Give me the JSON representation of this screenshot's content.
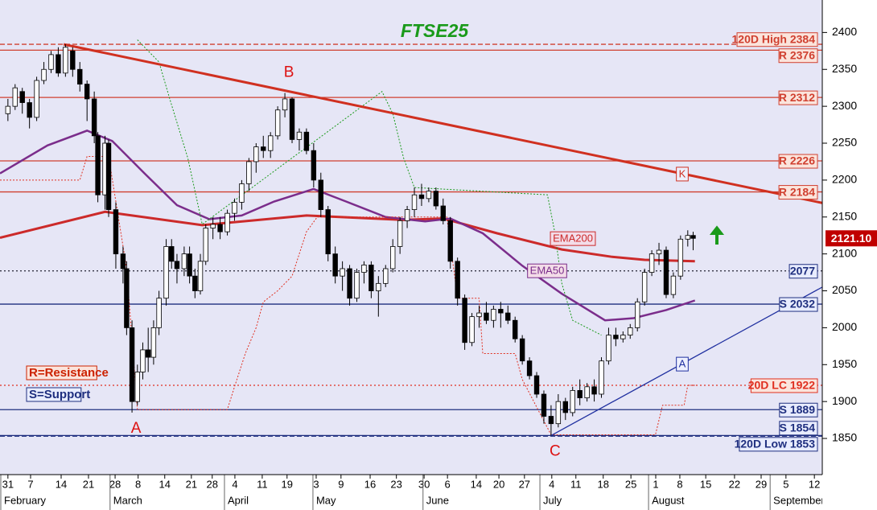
{
  "chart_data": {
    "type": "candlestick",
    "title": "FTSE25",
    "x": [
      0,
      2,
      4,
      6,
      8,
      10,
      12,
      14,
      16,
      18,
      20,
      22,
      24,
      25,
      27,
      28,
      30,
      32,
      33,
      34.5,
      36,
      37.5,
      39,
      40.5,
      42,
      44,
      45.5,
      47,
      49,
      50.5,
      52,
      53.5,
      55,
      57,
      59,
      61,
      63,
      65,
      67,
      69,
      71,
      73,
      75,
      77,
      79,
      81,
      83,
      85,
      87,
      89,
      91,
      93,
      95,
      97,
      99,
      101,
      103,
      105,
      107,
      109,
      111,
      113,
      115,
      117,
      119,
      121,
      123,
      125,
      127,
      129,
      131,
      133,
      135,
      137,
      139,
      141,
      143,
      145,
      147,
      149,
      151,
      153,
      155,
      157,
      159,
      161,
      163,
      165,
      167,
      169,
      171,
      173,
      175,
      177,
      179,
      181,
      183,
      185,
      187,
      189,
      190.5
    ],
    "open": [
      2290,
      2300,
      2320,
      2305,
      2285,
      2335,
      2350,
      2370,
      2345,
      2375,
      2350,
      2330,
      2310,
      2260,
      2180,
      2250,
      2160,
      2100,
      2080,
      2000,
      1900,
      1940,
      1970,
      1960,
      2000,
      2040,
      2110,
      2090,
      2080,
      2100,
      2070,
      2050,
      2090,
      2135,
      2140,
      2130,
      2155,
      2170,
      2195,
      2225,
      2245,
      2240,
      2260,
      2295,
      2310,
      2255,
      2265,
      2240,
      2200,
      2160,
      2100,
      2070,
      2080,
      2040,
      2075,
      2085,
      2050,
      2060,
      2080,
      2110,
      2145,
      2160,
      2180,
      2175,
      2185,
      2165,
      2145,
      2090,
      2040,
      1980,
      2015,
      2020,
      2010,
      2025,
      2020,
      2010,
      1985,
      1955,
      1935,
      1910,
      1880,
      1870,
      1900,
      1885,
      1915,
      1905,
      1920,
      1910,
      1955,
      1990,
      1985,
      1990,
      2000,
      2035,
      2075,
      2100,
      2105,
      2045,
      2070,
      2120,
      2125
    ],
    "high": [
      2310,
      2330,
      2325,
      2310,
      2340,
      2360,
      2375,
      2380,
      2384,
      2380,
      2360,
      2335,
      2320,
      2265,
      2260,
      2255,
      2170,
      2110,
      2090,
      2010,
      1950,
      1980,
      2000,
      2010,
      2050,
      2120,
      2120,
      2100,
      2110,
      2110,
      2080,
      2100,
      2140,
      2150,
      2150,
      2160,
      2175,
      2200,
      2230,
      2250,
      2260,
      2265,
      2300,
      2318,
      2312,
      2270,
      2270,
      2250,
      2210,
      2165,
      2110,
      2090,
      2085,
      2080,
      2090,
      2090,
      2070,
      2085,
      2120,
      2150,
      2165,
      2190,
      2195,
      2190,
      2190,
      2175,
      2150,
      2095,
      2045,
      2020,
      2030,
      2035,
      2030,
      2035,
      2030,
      2015,
      1990,
      1960,
      1940,
      1915,
      1895,
      1910,
      1905,
      1920,
      1930,
      1925,
      1930,
      1960,
      2000,
      2000,
      1995,
      2005,
      2040,
      2080,
      2105,
      2115,
      2110,
      2075,
      2125,
      2132,
      2130
    ],
    "low": [
      2280,
      2295,
      2290,
      2270,
      2280,
      2330,
      2345,
      2340,
      2340,
      2340,
      2320,
      2280,
      2250,
      2170,
      2160,
      2150,
      2080,
      2060,
      1990,
      1885,
      1895,
      1930,
      1940,
      1950,
      1990,
      2030,
      2080,
      2060,
      2070,
      2060,
      2040,
      2045,
      2085,
      2120,
      2120,
      2125,
      2145,
      2160,
      2185,
      2210,
      2230,
      2230,
      2255,
      2285,
      2250,
      2240,
      2235,
      2190,
      2150,
      2090,
      2060,
      2050,
      2030,
      2035,
      2060,
      2040,
      2015,
      2055,
      2075,
      2100,
      2135,
      2150,
      2165,
      2170,
      2160,
      2140,
      2080,
      2030,
      1970,
      1975,
      2000,
      2005,
      2000,
      2000,
      2005,
      1980,
      1950,
      1930,
      1905,
      1870,
      1854,
      1865,
      1875,
      1880,
      1895,
      1900,
      1900,
      1905,
      1950,
      1975,
      1980,
      1985,
      1995,
      2030,
      2070,
      2085,
      2040,
      2040,
      2065,
      2110,
      2105
    ],
    "close": [
      2300,
      2325,
      2305,
      2285,
      2335,
      2350,
      2370,
      2345,
      2380,
      2350,
      2330,
      2310,
      2260,
      2180,
      2250,
      2160,
      2100,
      2080,
      2000,
      1900,
      1940,
      1970,
      1960,
      2000,
      2040,
      2110,
      2090,
      2080,
      2100,
      2070,
      2050,
      2090,
      2135,
      2140,
      2130,
      2155,
      2170,
      2195,
      2225,
      2245,
      2240,
      2260,
      2295,
      2310,
      2255,
      2265,
      2240,
      2200,
      2160,
      2100,
      2070,
      2080,
      2040,
      2075,
      2085,
      2050,
      2060,
      2080,
      2110,
      2145,
      2160,
      2180,
      2175,
      2185,
      2165,
      2145,
      2090,
      2040,
      1980,
      2015,
      2020,
      2010,
      2025,
      2020,
      2010,
      1985,
      1955,
      1935,
      1910,
      1880,
      1870,
      1900,
      1885,
      1915,
      1905,
      1920,
      1910,
      1955,
      1990,
      1985,
      1990,
      2000,
      2035,
      2075,
      2100,
      2105,
      2045,
      2070,
      2120,
      2125,
      2121.1
    ],
    "up_color": "#ffffff",
    "down_color": "#000000",
    "xlim": [
      -2.2,
      226.4
    ],
    "ylim": [
      1801,
      2444
    ],
    "yticks": [
      1850,
      1900,
      1950,
      2000,
      2050,
      2100,
      2150,
      2200,
      2250,
      2300,
      2350,
      2400
    ],
    "xticks": [
      {
        "value": 0,
        "label": "31"
      },
      {
        "value": 6.3,
        "label": "7"
      },
      {
        "value": 14.8,
        "label": "14"
      },
      {
        "value": 22.4,
        "label": "21"
      },
      {
        "value": 29.8,
        "label": "28"
      },
      {
        "value": 36.2,
        "label": "8"
      },
      {
        "value": 43.6,
        "label": "14"
      },
      {
        "value": 51,
        "label": "21"
      },
      {
        "value": 56.8,
        "label": "28"
      },
      {
        "value": 63.1,
        "label": "4"
      },
      {
        "value": 70.7,
        "label": "11"
      },
      {
        "value": 77.6,
        "label": "19"
      },
      {
        "value": 85.7,
        "label": "3"
      },
      {
        "value": 92.6,
        "label": "9"
      },
      {
        "value": 100.7,
        "label": "16"
      },
      {
        "value": 108,
        "label": "23"
      },
      {
        "value": 115.7,
        "label": "30"
      },
      {
        "value": 122.2,
        "label": "6"
      },
      {
        "value": 130.2,
        "label": "14"
      },
      {
        "value": 136.5,
        "label": "20"
      },
      {
        "value": 143.6,
        "label": "27"
      },
      {
        "value": 151.2,
        "label": "4"
      },
      {
        "value": 157.9,
        "label": "11"
      },
      {
        "value": 165.5,
        "label": "18"
      },
      {
        "value": 173.2,
        "label": "25"
      },
      {
        "value": 180.1,
        "label": "1"
      },
      {
        "value": 186.8,
        "label": "8"
      },
      {
        "value": 194,
        "label": "15"
      },
      {
        "value": 202,
        "label": "22"
      },
      {
        "value": 209.4,
        "label": "29"
      },
      {
        "value": 216.3,
        "label": "5"
      },
      {
        "value": 224.2,
        "label": "12"
      }
    ],
    "months": [
      {
        "value": -2.2,
        "label": "February"
      },
      {
        "value": 28.4,
        "label": "March"
      },
      {
        "value": 60.2,
        "label": "April"
      },
      {
        "value": 84.8,
        "label": "May"
      },
      {
        "value": 115.4,
        "label": "June"
      },
      {
        "value": 147.9,
        "label": "July"
      },
      {
        "value": 178.1,
        "label": "August"
      },
      {
        "value": 211.9,
        "label": "September"
      }
    ],
    "overlays": [
      {
        "name": "EMA200",
        "color": "#cc2a2a",
        "x": [
          -2.2,
          27,
          54,
          83,
          110,
          121,
          136,
          154,
          168,
          177,
          191
        ],
        "values": [
          2122,
          2157,
          2139,
          2152,
          2146,
          2148,
          2128,
          2106,
          2096,
          2092,
          2090
        ]
      },
      {
        "name": "EMA50",
        "color": "#7b2d8b",
        "x": [
          -2.2,
          11,
          22,
          29,
          38,
          47,
          56,
          65,
          74,
          85,
          94,
          105,
          116,
          123,
          132,
          143,
          154,
          166,
          174,
          183,
          191
        ],
        "values": [
          2209,
          2247,
          2267,
          2253,
          2209,
          2166,
          2147,
          2152,
          2171,
          2188,
          2171,
          2150,
          2144,
          2148,
          2128,
          2084,
          2046,
          2010,
          2013,
          2024,
          2037
        ]
      },
      {
        "color": "#e03020",
        "x": [
          -2.2,
          20,
          22,
          28,
          33,
          36,
          61,
          63,
          66,
          69,
          71,
          75,
          79,
          83,
          86,
          122,
          125,
          131,
          132,
          141,
          143,
          151,
          180,
          182,
          188,
          189,
          191
        ],
        "values": [
          2200,
          2200,
          2232,
          2232,
          2080,
          1889,
          1889,
          1920,
          1965,
          2000,
          2035,
          2050,
          2070,
          2130,
          2150,
          2150,
          2040,
          2040,
          1965,
          1965,
          1930,
          1855,
          1855,
          1895,
          1895,
          1922,
          1922
        ]
      },
      {
        "color": "#1a9a1a",
        "x": [
          36,
          42,
          45,
          50,
          54,
          104,
          107,
          110,
          113,
          150,
          152,
          154,
          157,
          165
        ],
        "values": [
          2390,
          2360,
          2310,
          2230,
          2140,
          2320,
          2290,
          2230,
          2190,
          2180,
          2130,
          2060,
          2010,
          1990
        ]
      }
    ],
    "levels": [
      {
        "value": 2384,
        "label": "120D High 2384",
        "color": "#d04030",
        "style": "dashed"
      },
      {
        "value": 2376,
        "label": "R 2376",
        "color": "#d04030",
        "style": "solid"
      },
      {
        "value": 2312,
        "label": "R 2312",
        "color": "#d04030",
        "style": "solid"
      },
      {
        "value": 2226,
        "label": "R 2226",
        "color": "#d04030",
        "style": "solid"
      },
      {
        "value": 2184,
        "label": "R 2184",
        "color": "#d04030",
        "style": "solid"
      },
      {
        "value": 2077,
        "label": "2077",
        "color": "#1f2f7f",
        "style": "dotted"
      },
      {
        "value": 2032,
        "label": "S 2032",
        "color": "#1f2f7f",
        "style": "solid"
      },
      {
        "value": 1922,
        "label": "20D LC 1922",
        "color": "#e03020",
        "style": "dotted"
      },
      {
        "value": 1889,
        "label": "S 1889",
        "color": "#1f2f7f",
        "style": "solid"
      },
      {
        "value": 1854,
        "label": "S 1854",
        "color": "#1f2f7f",
        "style": "solid"
      },
      {
        "value": 1853,
        "label": "120D Low 1853",
        "color": "#1f2f7f",
        "style": "dashed"
      }
    ],
    "trendlines": [
      {
        "x": [
          15.5,
          226.4
        ],
        "values": [
          2384,
          2169
        ],
        "color": "#d03020",
        "label": "K"
      },
      {
        "x": [
          151,
          226.4
        ],
        "values": [
          1854,
          2055
        ],
        "color": "#2030a0",
        "label": "A"
      }
    ],
    "annotations": [
      {
        "label": "A",
        "x": 34.5,
        "y": 1885,
        "position": "below"
      },
      {
        "label": "B",
        "x": 77,
        "y": 2318,
        "position": "above"
      },
      {
        "label": "C",
        "x": 151,
        "y": 1854,
        "position": "below"
      }
    ],
    "notes": [
      {
        "text": "R=Resistance",
        "color": "#cc2200"
      },
      {
        "text": "S=Support",
        "color": "#1f2f7f"
      }
    ],
    "last": {
      "value": 2121.1,
      "label": "2121.10",
      "color": "#c00000"
    }
  }
}
